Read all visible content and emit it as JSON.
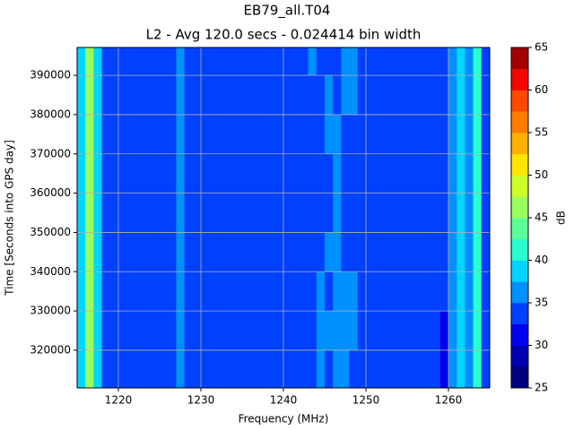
{
  "chart_data": {
    "type": "heatmap",
    "title": "EB79_all.T04",
    "subtitle": "L2 - Avg 120.0 secs - 0.024414 bin width",
    "x_label": "Frequency (MHz)",
    "y_label": "Time [Seconds into GPS day]",
    "colorbar_label": "dB",
    "xlim": [
      1215,
      1265
    ],
    "ylim": [
      310400,
      397100
    ],
    "xticks": [
      1220,
      1230,
      1240,
      1250,
      1260
    ],
    "yticks": [
      320000,
      330000,
      340000,
      350000,
      360000,
      370000,
      380000,
      390000
    ],
    "grid": true,
    "x_edges": [
      1215,
      1216,
      1217,
      1218,
      1219,
      1220,
      1221,
      1222,
      1223,
      1224,
      1225,
      1226,
      1227,
      1228,
      1229,
      1230,
      1231,
      1232,
      1233,
      1234,
      1235,
      1236,
      1237,
      1238,
      1239,
      1240,
      1241,
      1242,
      1243,
      1244,
      1245,
      1246,
      1247,
      1248,
      1249,
      1250,
      1251,
      1252,
      1253,
      1254,
      1255,
      1256,
      1257,
      1258,
      1259,
      1260,
      1261,
      1262,
      1263,
      1264,
      1265
    ],
    "y_edges": [
      310400,
      320000,
      330000,
      340000,
      350000,
      360000,
      370000,
      380000,
      390000,
      397100
    ],
    "z": [
      [
        38,
        46,
        38,
        33,
        33,
        33,
        33,
        33,
        33,
        33,
        33,
        33,
        36,
        33,
        33,
        33,
        33,
        33,
        33,
        33,
        33,
        33,
        33,
        33,
        33,
        33,
        33,
        33,
        33,
        36,
        33,
        36,
        36,
        33,
        33,
        33,
        33,
        33,
        33,
        33,
        33,
        33,
        33,
        33,
        31,
        36,
        38,
        36,
        41,
        33
      ],
      [
        38,
        46,
        38,
        33,
        33,
        33,
        33,
        33,
        33,
        33,
        33,
        33,
        36,
        33,
        33,
        33,
        33,
        33,
        33,
        33,
        33,
        33,
        33,
        33,
        33,
        33,
        33,
        33,
        33,
        36,
        36,
        36,
        36,
        36,
        33,
        33,
        33,
        33,
        33,
        33,
        33,
        33,
        33,
        33,
        30,
        36,
        38,
        36,
        41,
        33
      ],
      [
        38,
        46,
        38,
        33,
        33,
        33,
        33,
        33,
        33,
        33,
        33,
        33,
        36,
        33,
        33,
        33,
        33,
        33,
        33,
        33,
        33,
        33,
        33,
        33,
        33,
        33,
        33,
        33,
        33,
        36,
        33,
        36,
        36,
        36,
        33,
        33,
        33,
        33,
        33,
        33,
        33,
        33,
        33,
        33,
        33,
        36,
        38,
        36,
        41,
        33
      ],
      [
        38,
        46,
        38,
        33,
        33,
        33,
        33,
        33,
        33,
        33,
        33,
        33,
        36,
        33,
        33,
        33,
        33,
        33,
        33,
        33,
        33,
        33,
        33,
        33,
        33,
        33,
        33,
        33,
        33,
        33,
        36,
        36,
        33,
        33,
        33,
        33,
        33,
        33,
        33,
        33,
        33,
        33,
        33,
        33,
        33,
        36,
        38,
        36,
        41,
        33
      ],
      [
        38,
        46,
        38,
        33,
        33,
        33,
        33,
        33,
        33,
        33,
        33,
        33,
        36,
        33,
        33,
        33,
        33,
        33,
        33,
        33,
        33,
        33,
        33,
        33,
        33,
        33,
        33,
        33,
        33,
        33,
        33,
        36,
        33,
        33,
        33,
        33,
        33,
        33,
        33,
        33,
        33,
        33,
        33,
        33,
        33,
        36,
        38,
        36,
        41,
        33
      ],
      [
        38,
        46,
        38,
        33,
        33,
        33,
        33,
        33,
        33,
        33,
        33,
        33,
        36,
        33,
        33,
        33,
        33,
        33,
        33,
        33,
        33,
        33,
        33,
        33,
        33,
        33,
        33,
        33,
        33,
        33,
        33,
        36,
        33,
        33,
        33,
        33,
        33,
        33,
        33,
        33,
        33,
        33,
        33,
        33,
        33,
        36,
        38,
        36,
        41,
        33
      ],
      [
        38,
        46,
        38,
        33,
        33,
        33,
        33,
        33,
        33,
        33,
        33,
        33,
        36,
        33,
        33,
        33,
        33,
        33,
        33,
        33,
        33,
        33,
        33,
        33,
        33,
        33,
        33,
        33,
        33,
        33,
        36,
        36,
        33,
        33,
        33,
        33,
        33,
        33,
        33,
        33,
        33,
        33,
        33,
        33,
        33,
        36,
        38,
        36,
        41,
        33
      ],
      [
        38,
        46,
        38,
        33,
        33,
        33,
        33,
        33,
        33,
        33,
        33,
        33,
        36,
        33,
        33,
        33,
        33,
        33,
        33,
        33,
        33,
        33,
        33,
        33,
        33,
        33,
        33,
        33,
        33,
        33,
        36,
        33,
        36,
        36,
        33,
        33,
        33,
        33,
        33,
        33,
        33,
        33,
        33,
        33,
        33,
        36,
        38,
        36,
        41,
        33
      ],
      [
        38,
        46,
        38,
        33,
        33,
        33,
        33,
        33,
        33,
        33,
        33,
        33,
        36,
        33,
        33,
        33,
        33,
        33,
        33,
        33,
        33,
        33,
        33,
        33,
        33,
        33,
        33,
        33,
        36,
        33,
        33,
        33,
        36,
        36,
        33,
        33,
        33,
        33,
        33,
        33,
        33,
        33,
        33,
        33,
        33,
        36,
        38,
        36,
        41,
        33
      ]
    ],
    "levels": [
      25,
      27.5,
      30,
      32.5,
      35,
      37.5,
      40,
      42.5,
      45,
      47.5,
      50,
      52.5,
      55,
      57.5,
      60,
      62.5,
      65
    ],
    "colors": [
      "#000080",
      "#0000b2",
      "#0000ec",
      "#0040ff",
      "#0090ff",
      "#00d4ff",
      "#29ffce",
      "#5dff9a",
      "#9aff5d",
      "#ceff29",
      "#ffe500",
      "#ffb000",
      "#ff7a00",
      "#ff4800",
      "#f10800",
      "#a40000"
    ],
    "colorbar_ticks": [
      25,
      30,
      35,
      40,
      45,
      50,
      55,
      60,
      65
    ]
  }
}
